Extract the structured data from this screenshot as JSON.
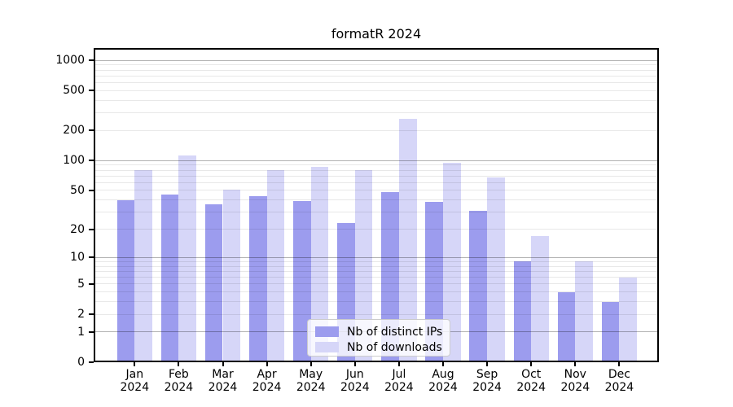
{
  "title": "formatR 2024",
  "chart_data": {
    "type": "bar",
    "title": "formatR 2024",
    "categories": [
      "Jan",
      "Feb",
      "Mar",
      "Apr",
      "May",
      "Jun",
      "Jul",
      "Aug",
      "Sep",
      "Oct",
      "Nov",
      "Dec"
    ],
    "year_label": "2024",
    "series": [
      {
        "name": "Nb of distinct IPs",
        "color": "#9c9cee",
        "values": [
          40,
          45,
          36,
          44,
          39,
          23,
          48,
          38,
          31,
          9,
          4,
          3
        ]
      },
      {
        "name": "Nb of downloads",
        "color": "#d6d6f8",
        "values": [
          80,
          113,
          51,
          80,
          87,
          80,
          260,
          95,
          68,
          17,
          9,
          6
        ]
      }
    ],
    "yscale": "log1p",
    "ylim": [
      0,
      1325
    ],
    "yticks": [
      0,
      1,
      2,
      5,
      10,
      20,
      50,
      100,
      200,
      500,
      1000
    ],
    "ytick_major_gridlines": [
      1,
      10,
      100,
      1000
    ],
    "grid": true,
    "legend": {
      "position": "inside-bottom-center"
    }
  }
}
